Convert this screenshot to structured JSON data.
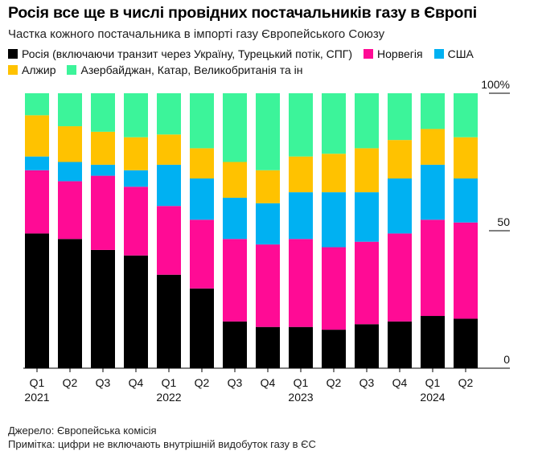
{
  "title": "Росія все ще в числі провідних постачальників газу в Європі",
  "subtitle": "Частка кожного постачальника в імпорті газу Європейського Союзу",
  "legend": [
    {
      "label": "Росія (включаючи транзит через Україну, Турецький потік, СПГ)",
      "color": "#000000"
    },
    {
      "label": "Норвегія",
      "color": "#ff0b95"
    },
    {
      "label": "США",
      "color": "#00b1f2"
    },
    {
      "label": "Алжир",
      "color": "#ffc200"
    },
    {
      "label": "Азербайджан, Катар, Великобританія та ін",
      "color": "#3cf49a"
    }
  ],
  "footer": {
    "source": "Джерело: Європейська комісія",
    "note": "Примітка: цифри не включають внутрішній видобуток газу в ЄС"
  },
  "chart_data": {
    "type": "bar",
    "stacked": true,
    "categories": [
      "Q1 2021",
      "Q2 2021",
      "Q3 2021",
      "Q4 2021",
      "Q1 2022",
      "Q2 2022",
      "Q3 2022",
      "Q4 2022",
      "Q1 2023",
      "Q2 2023",
      "Q3 2023",
      "Q4 2023",
      "Q1 2024",
      "Q2 2024"
    ],
    "quarter_labels": [
      "Q1",
      "Q2",
      "Q3",
      "Q4",
      "Q1",
      "Q2",
      "Q3",
      "Q4",
      "Q1",
      "Q2",
      "Q3",
      "Q4",
      "Q1",
      "Q2"
    ],
    "year_labels": [
      {
        "index": 0,
        "label": "2021"
      },
      {
        "index": 4,
        "label": "2022"
      },
      {
        "index": 8,
        "label": "2023"
      },
      {
        "index": 12,
        "label": "2024"
      }
    ],
    "ylim": [
      0,
      100
    ],
    "yticks": [
      {
        "value": 0,
        "label": "0"
      },
      {
        "value": 50,
        "label": "50"
      },
      {
        "value": 100,
        "label": "100%"
      }
    ],
    "series": [
      {
        "name": "Росія (включаючи транзит через Україну, Турецький потік, СПГ)",
        "color": "#000000",
        "values": [
          49,
          47,
          43,
          41,
          34,
          29,
          17,
          15,
          15,
          14,
          16,
          17,
          19,
          18
        ]
      },
      {
        "name": "Норвегія",
        "color": "#ff0b95",
        "values": [
          23,
          21,
          27,
          25,
          25,
          25,
          30,
          30,
          32,
          30,
          30,
          32,
          35,
          35
        ]
      },
      {
        "name": "США",
        "color": "#00b1f2",
        "values": [
          5,
          7,
          4,
          6,
          15,
          15,
          15,
          15,
          17,
          20,
          18,
          20,
          20,
          16
        ]
      },
      {
        "name": "Алжир",
        "color": "#ffc200",
        "values": [
          15,
          13,
          12,
          12,
          11,
          11,
          13,
          12,
          13,
          14,
          16,
          14,
          13,
          15
        ]
      },
      {
        "name": "Азербайджан, Катар, Великобританія та ін",
        "color": "#3cf49a",
        "values": [
          8,
          12,
          14,
          16,
          15,
          20,
          25,
          28,
          23,
          22,
          20,
          17,
          13,
          16
        ]
      }
    ]
  }
}
